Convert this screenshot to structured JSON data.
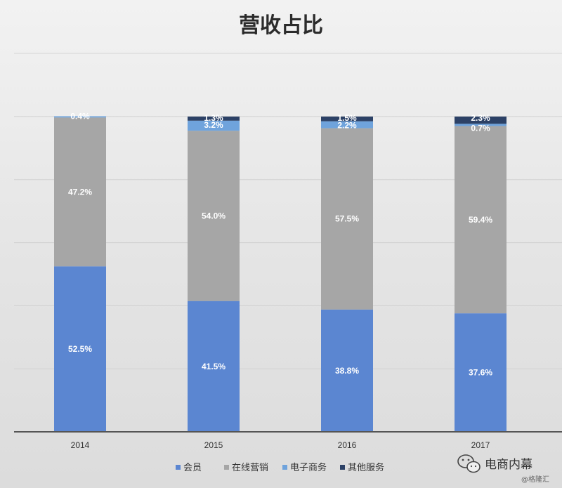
{
  "chart_data": {
    "type": "bar",
    "stacked": true,
    "title": "营收占比",
    "categories": [
      "2014",
      "2015",
      "2016",
      "2017"
    ],
    "ylim": [
      0,
      100
    ],
    "grid": true,
    "legend_position": "bottom",
    "series": [
      {
        "name": "会员",
        "color": "#5b86d1",
        "values": [
          52.5,
          41.5,
          38.8,
          37.6
        ],
        "labels": [
          "52.5%",
          "41.5%",
          "38.8%",
          "37.6%"
        ]
      },
      {
        "name": "在线营销",
        "color": "#a6a6a6",
        "values": [
          47.2,
          54.0,
          57.5,
          59.4
        ],
        "labels": [
          "47.2%",
          "54.0%",
          "57.5%",
          "59.4%"
        ]
      },
      {
        "name": "电子商务",
        "color": "#6fa3dc",
        "values": [
          0.4,
          3.2,
          2.2,
          0.7
        ],
        "labels": [
          "0.4%",
          "3.2%",
          "2.2%",
          "0.7%"
        ]
      },
      {
        "name": "其他服务",
        "color": "#2c4166",
        "values": [
          0,
          1.3,
          1.5,
          2.3
        ],
        "labels": [
          "",
          "1.3%",
          "1.5%",
          "2.3%"
        ]
      }
    ]
  },
  "watermark": {
    "main": "电商内幕",
    "sub": "@格隆汇",
    "icon": "wechat-icon"
  }
}
